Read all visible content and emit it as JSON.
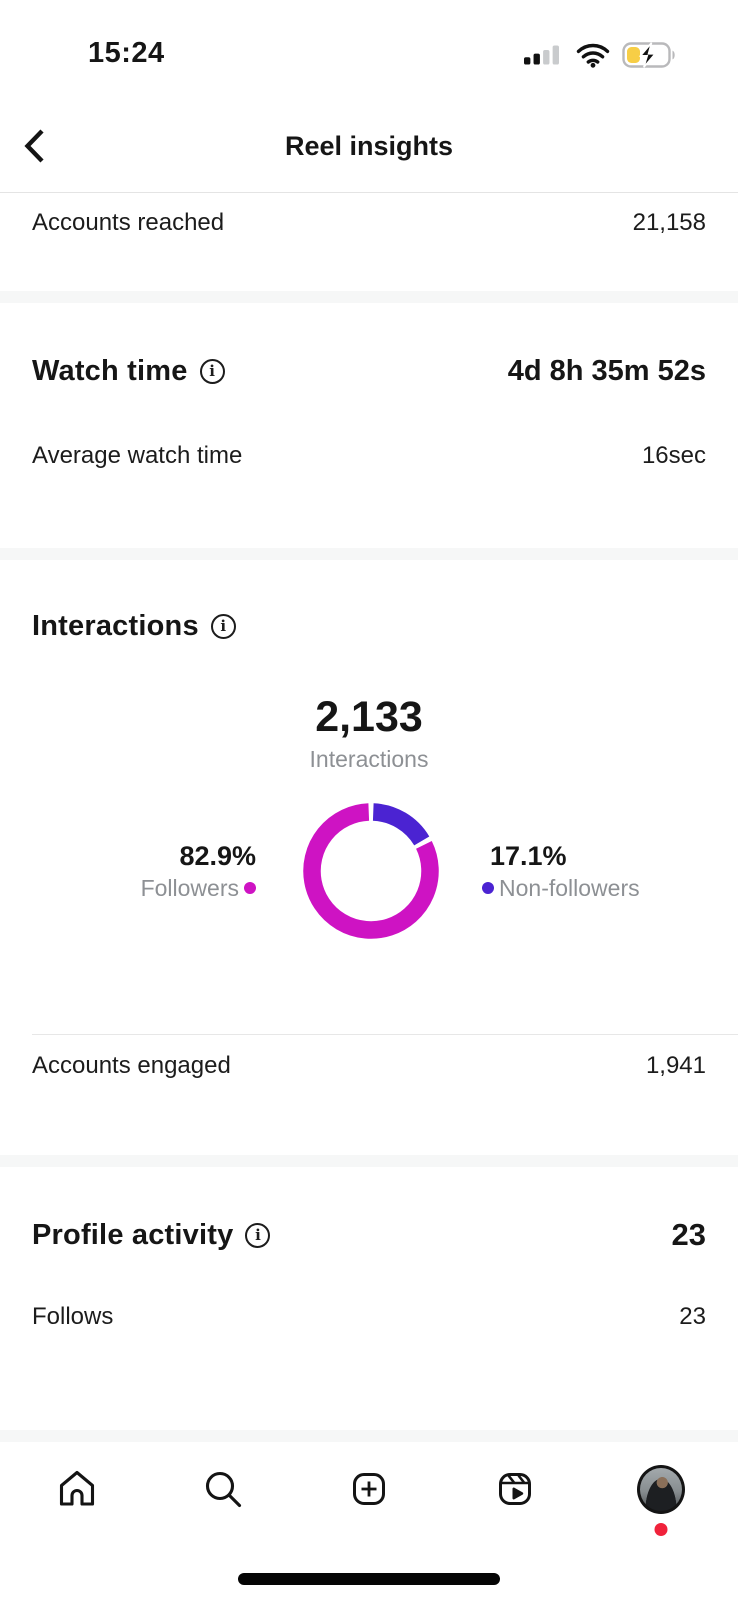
{
  "status_bar": {
    "time": "15:24",
    "battery_color": "#F7CE46",
    "icons": [
      "cellular-signal",
      "wifi",
      "battery-charging"
    ]
  },
  "header": {
    "title": "Reel insights"
  },
  "accounts_reached": {
    "label": "Accounts reached",
    "value": "21,158"
  },
  "watch_time": {
    "title": "Watch time",
    "value": "4d 8h 35m 52s",
    "rows": [
      {
        "label": "Average watch time",
        "value": "16sec"
      }
    ]
  },
  "interactions": {
    "title": "Interactions",
    "total": "2,133",
    "total_label": "Interactions",
    "left": {
      "pct": "82.9%",
      "label": "Followers"
    },
    "right": {
      "pct": "17.1%",
      "label": "Non-followers"
    },
    "rows": [
      {
        "label": "Accounts engaged",
        "value": "1,941"
      }
    ]
  },
  "profile_activity": {
    "title": "Profile activity",
    "value": "23",
    "rows": [
      {
        "label": "Follows",
        "value": "23"
      }
    ]
  },
  "tab_bar": {
    "items": [
      "home",
      "search",
      "create",
      "reels",
      "profile"
    ]
  },
  "colors": {
    "followers": "#CE13C3",
    "non_followers": "#4B23D2",
    "red_dot": "#F0223B"
  },
  "chart_data": {
    "type": "pie",
    "donut": true,
    "title": "Interactions",
    "total": 2133,
    "categories": [
      "Followers",
      "Non-followers"
    ],
    "values": [
      82.9,
      17.1
    ],
    "unit": "%",
    "colors": [
      "#CE13C3",
      "#4B23D2"
    ],
    "legend_position": "sides"
  }
}
